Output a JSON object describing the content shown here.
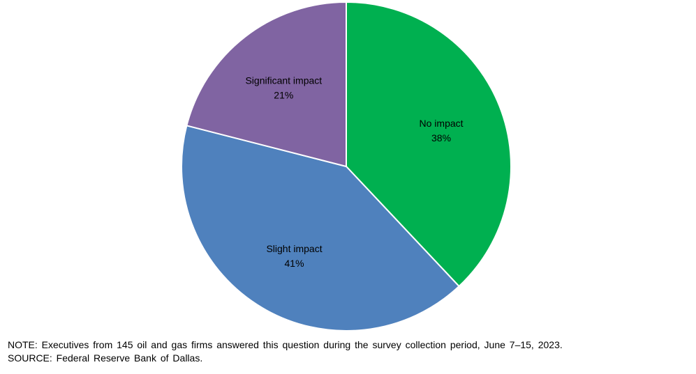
{
  "chart_data": {
    "type": "pie",
    "title": "",
    "slices": [
      {
        "label": "No impact",
        "value": 38,
        "value_label": "38%",
        "color": "#00b050"
      },
      {
        "label": "Slight impact",
        "value": 41,
        "value_label": "41%",
        "color": "#4f81bd"
      },
      {
        "label": "Significant impact",
        "value": 21,
        "value_label": "21%",
        "color": "#8064a2"
      }
    ],
    "start_angle": "12 o'clock",
    "direction": "clockwise",
    "slice_border_color": "#ffffff",
    "legend": "none"
  },
  "footer": {
    "note": "NOTE: Executives from 145 oil and gas firms answered this question during the survey collection period, June 7–15, 2023.",
    "source": "SOURCE: Federal Reserve Bank of Dallas."
  }
}
